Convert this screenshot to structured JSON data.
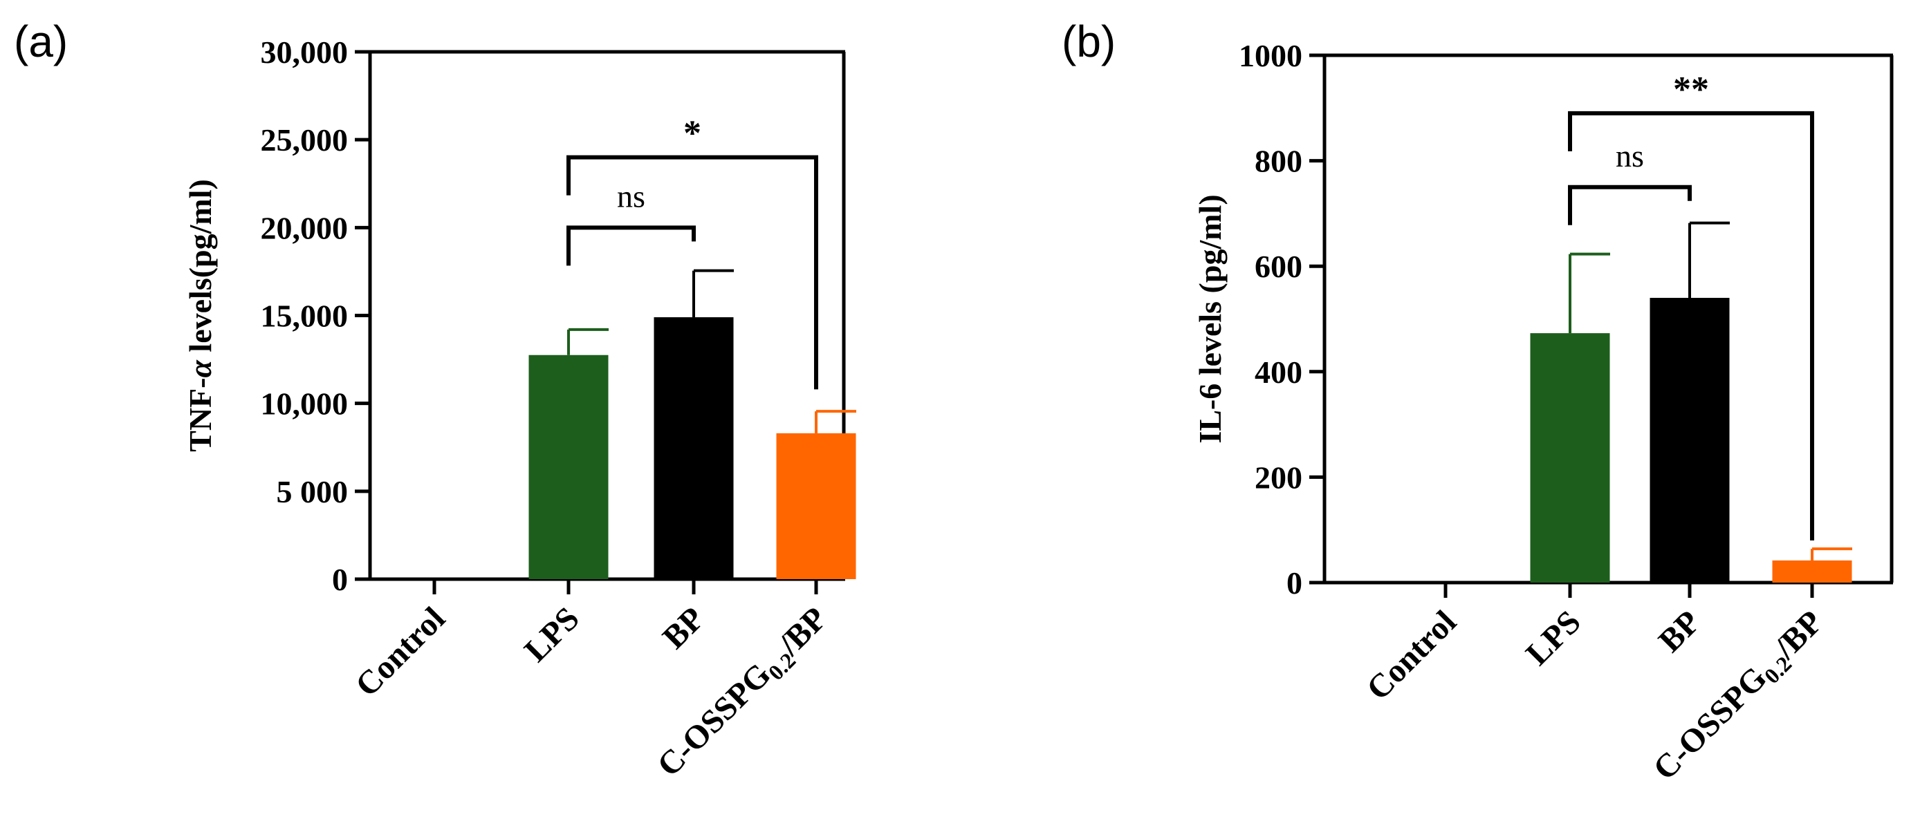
{
  "chart_data": [
    {
      "type": "bar",
      "panel_label": "(a)",
      "ylabel": "TNF-α levels(pg/ml)",
      "ylabel_parts": {
        "before": "TNF-",
        "italic": "α",
        "after": " levels(pg/ml)"
      },
      "ylim": [
        0,
        30000
      ],
      "yticks": [
        0,
        5000,
        10000,
        15000,
        20000,
        25000,
        30000
      ],
      "ytick_labels": [
        "0",
        "5 000",
        "10,000",
        "15,000",
        "20,000",
        "25,000",
        "30,000"
      ],
      "categories": [
        "Control",
        "LPS",
        "BP",
        "C-OSSPG0.2/BP"
      ],
      "category_labels": [
        {
          "main": "Control"
        },
        {
          "main": "LPS"
        },
        {
          "main": "BP"
        },
        {
          "main": "C-OSSPG",
          "sub": "0.2",
          "tail": "/BP"
        }
      ],
      "values": [
        0,
        12750,
        14900,
        8300
      ],
      "errors": [
        0,
        1450,
        2650,
        1250
      ],
      "colors": [
        "#1f5f1f",
        "#1d5e1d",
        "#000000",
        "#ff6600"
      ],
      "significance": [
        {
          "from": 1,
          "to": 2,
          "label": "ns",
          "y": 20000
        },
        {
          "from": 1,
          "to": 3,
          "label": "*",
          "y": 24000,
          "drop_to": 10800
        }
      ]
    },
    {
      "type": "bar",
      "panel_label": "(b)",
      "ylabel": "IL-6 levels (pg/ml)",
      "ylabel_parts": {
        "before": "IL-6 levels (pg/ml)",
        "italic": "",
        "after": ""
      },
      "ylim": [
        0,
        1000
      ],
      "yticks": [
        0,
        200,
        400,
        600,
        800,
        1000
      ],
      "ytick_labels": [
        "0",
        "200",
        "400",
        "600",
        "800",
        "1000"
      ],
      "categories": [
        "Control",
        "LPS",
        "BP",
        "C-OSSPG0.2/BP"
      ],
      "category_labels": [
        {
          "main": "Control"
        },
        {
          "main": "LPS"
        },
        {
          "main": "BP"
        },
        {
          "main": "C-OSSPG",
          "sub": "0.2",
          "tail": "/BP"
        }
      ],
      "values": [
        0,
        473,
        540,
        42
      ],
      "errors": [
        0,
        150,
        142,
        22
      ],
      "colors": [
        "#1f5f1f",
        "#1d5e1d",
        "#000000",
        "#ff6600"
      ],
      "significance": [
        {
          "from": 1,
          "to": 2,
          "label": "ns",
          "y": 750
        },
        {
          "from": 1,
          "to": 3,
          "label": "**",
          "y": 890,
          "drop_to": 80
        }
      ]
    }
  ]
}
